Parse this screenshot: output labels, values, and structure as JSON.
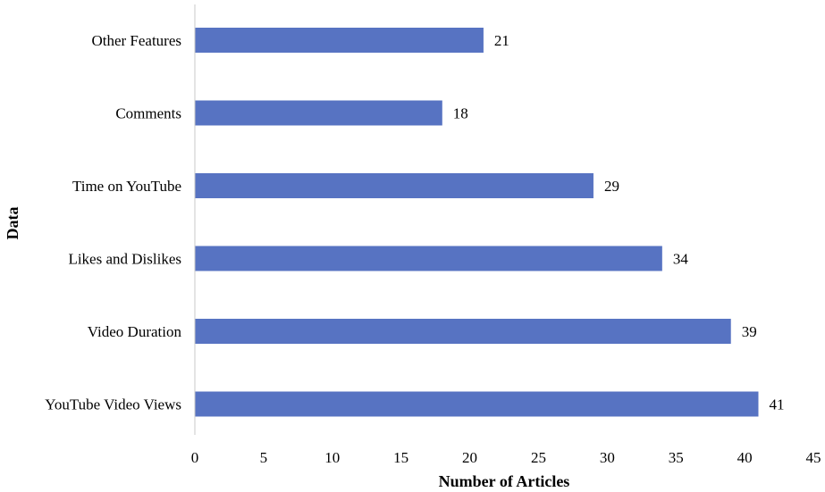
{
  "chart_data": {
    "type": "bar",
    "orientation": "horizontal",
    "categories": [
      "Other Features",
      "Comments",
      "Time on YouTube",
      "Likes and Dislikes",
      "Video Duration",
      "YouTube Video Views"
    ],
    "values": [
      21,
      18,
      29,
      34,
      39,
      41
    ],
    "xlabel": "Number of Articles",
    "ylabel": "Data",
    "xlim": [
      0,
      45
    ],
    "xticks": [
      0,
      5,
      10,
      15,
      20,
      25,
      30,
      35,
      40,
      45
    ],
    "bar_color": "#5773c2",
    "grid": false,
    "legend": "none",
    "data_labels": true
  }
}
